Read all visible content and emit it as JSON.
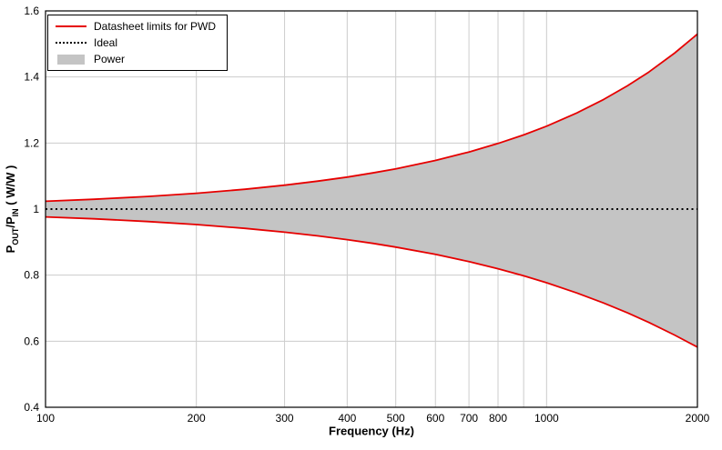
{
  "colors": {
    "limit_line": "#e60000",
    "ideal_line": "#000000",
    "band_fill": "#c4c4c4",
    "gridline": "#cccccc",
    "axis_border": "#000000",
    "background": "#ffffff",
    "tick_text": "#000000"
  },
  "legend": {
    "items": [
      {
        "label": "Datasheet limits for PWD",
        "swatch": "red-line"
      },
      {
        "label": "Ideal",
        "swatch": "dotted-line"
      },
      {
        "label": "Power",
        "swatch": "gray-fill"
      }
    ]
  },
  "axes": {
    "x": {
      "title": "Frequency (Hz)"
    },
    "y": {
      "part1": "P",
      "sub1": "OUT",
      "part2": "/P",
      "sub2": "IN",
      "part3": " ( W/W )"
    }
  },
  "chart_data": {
    "type": "area",
    "title": "",
    "xlabel": "Frequency (Hz)",
    "ylabel": "POUT/PIN ( W/W )",
    "x_scale": "log",
    "xlim": [
      100,
      2000
    ],
    "ylim": [
      0.4,
      1.6
    ],
    "grid": true,
    "legend_position": "top-left",
    "x_gridlines": [
      200,
      300,
      400,
      500,
      600,
      700,
      800,
      900,
      1000
    ],
    "x_tick_labels": [
      {
        "v": 100,
        "label": "100"
      },
      {
        "v": 200,
        "label": "200"
      },
      {
        "v": 300,
        "label": "300"
      },
      {
        "v": 400,
        "label": "400"
      },
      {
        "v": 500,
        "label": "500"
      },
      {
        "v": 600,
        "label": "600"
      },
      {
        "v": 700,
        "label": "700"
      },
      {
        "v": 800,
        "label": "800"
      },
      {
        "v": 1000,
        "label": "1000"
      },
      {
        "v": 2000,
        "label": "2000"
      }
    ],
    "y_ticks": [
      {
        "v": 0.4,
        "label": "0.4"
      },
      {
        "v": 0.6,
        "label": "0.6"
      },
      {
        "v": 0.8,
        "label": "0.8"
      },
      {
        "v": 1.0,
        "label": "1"
      },
      {
        "v": 1.2,
        "label": "1.2"
      },
      {
        "v": 1.4,
        "label": "1.4"
      },
      {
        "v": 1.6,
        "label": "1.6"
      }
    ],
    "x": [
      100,
      125,
      160,
      200,
      250,
      300,
      350,
      400,
      450,
      500,
      600,
      700,
      800,
      900,
      1000,
      1150,
      1300,
      1450,
      1600,
      1800,
      2000
    ],
    "series": [
      {
        "name": "Datasheet upper limit for PWD",
        "color": "#e60000",
        "values": [
          1.0238,
          1.0298,
          1.0383,
          1.048,
          1.0601,
          1.0724,
          1.0847,
          1.097,
          1.1095,
          1.122,
          1.1472,
          1.1728,
          1.1986,
          1.2246,
          1.251,
          1.2911,
          1.3319,
          1.3731,
          1.4151,
          1.472,
          1.5299
        ]
      },
      {
        "name": "Datasheet lower limit for PWD",
        "color": "#e60000",
        "values": [
          0.9764,
          0.9706,
          0.9624,
          0.9532,
          0.9416,
          0.9302,
          0.9188,
          0.9075,
          0.8962,
          0.885,
          0.8629,
          0.841,
          0.8194,
          0.7981,
          0.7771,
          0.7461,
          0.7157,
          0.686,
          0.6568,
          0.6189,
          0.5822
        ]
      },
      {
        "name": "Ideal",
        "color": "#000000",
        "style": "dotted",
        "constant": 1
      }
    ],
    "band": {
      "name": "Power",
      "fill": "#c4c4c4",
      "between": [
        "Datasheet upper limit for PWD",
        "Datasheet lower limit for PWD"
      ]
    }
  }
}
